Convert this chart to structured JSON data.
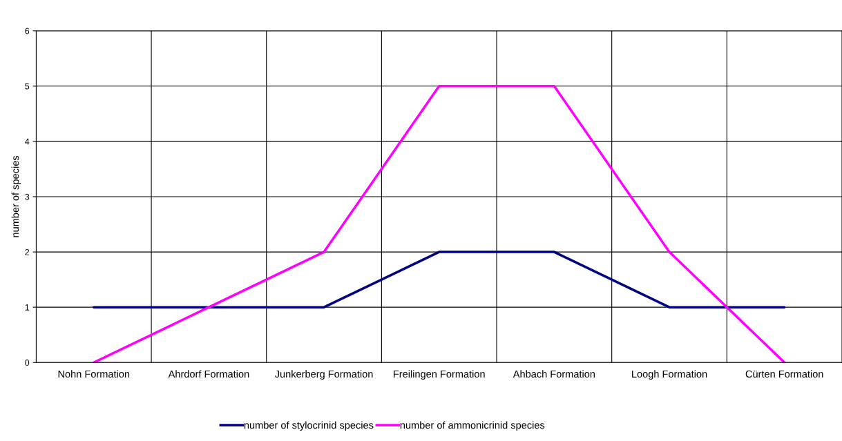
{
  "chart_data": {
    "type": "line",
    "ylabel": "number of species",
    "categories": [
      "Nohn Formation",
      "Ahrdorf Formation",
      "Junkerberg Formation",
      "Freilingen Formation",
      "Ahbach Formation",
      "Loogh Formation",
      "Cürten Formation"
    ],
    "series": [
      {
        "name": "number of stylocrinid species",
        "color": "#000080",
        "values": [
          1,
          1,
          1,
          2,
          2,
          1,
          1
        ]
      },
      {
        "name": "number of ammonicrinid species",
        "color": "#ff00ff",
        "values": [
          0,
          1,
          2,
          5,
          5,
          2,
          0
        ]
      }
    ],
    "ylim": [
      0,
      6
    ],
    "yticks": [
      0,
      1,
      2,
      3,
      4,
      5,
      6
    ],
    "grid": true,
    "legend": "bottom",
    "marker": "none",
    "line_style": "solid"
  }
}
